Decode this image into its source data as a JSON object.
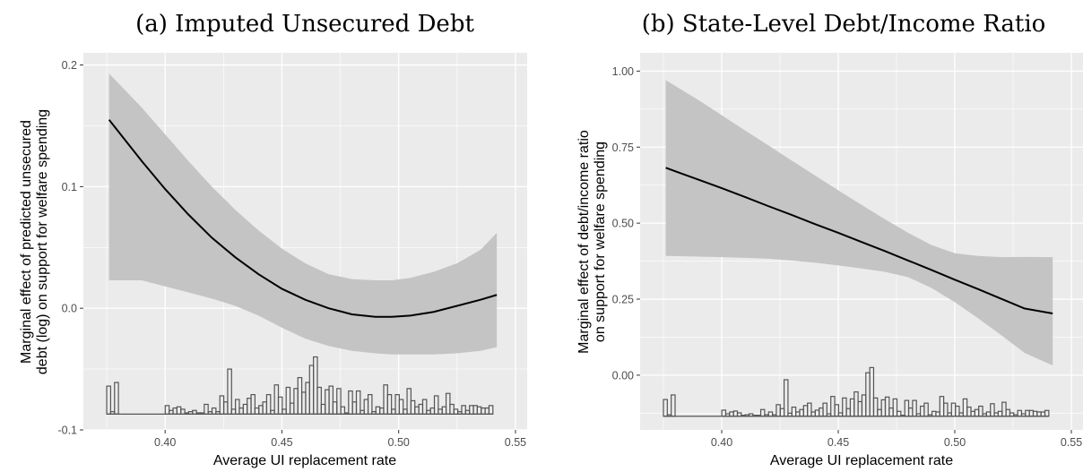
{
  "chart_data": [
    {
      "type": "line",
      "title": "(a) Imputed Unsecured Debt",
      "xlabel": "Average UI replacement rate",
      "ylabel": "Marginal effect of predicted unsecured debt (log) on support for welfare spending",
      "ylabel_lines": [
        "Marginal effect of predicted unsecured",
        "debt (log) on support for welfare spending"
      ],
      "xlim": [
        0.365,
        0.555
      ],
      "ylim": [
        -0.1,
        0.21
      ],
      "xticks": [
        0.4,
        0.45,
        0.5,
        0.55
      ],
      "xtick_labels": [
        "0.40",
        "0.45",
        "0.50",
        "0.55"
      ],
      "yticks": [
        -0.1,
        0.0,
        0.1,
        0.2
      ],
      "ytick_labels": [
        "-0.1",
        "0.0",
        "0.1",
        "0.2"
      ],
      "x": [
        0.376,
        0.39,
        0.4,
        0.41,
        0.42,
        0.43,
        0.44,
        0.45,
        0.46,
        0.47,
        0.48,
        0.49,
        0.497,
        0.505,
        0.515,
        0.525,
        0.535,
        0.542
      ],
      "series": [
        {
          "estimate": [
            0.155,
            0.121,
            0.098,
            0.077,
            0.058,
            0.042,
            0.028,
            0.016,
            0.007,
            0.0,
            -0.005,
            -0.007,
            -0.007,
            -0.006,
            -0.003,
            0.002,
            0.007,
            0.011
          ],
          "upper": [
            0.193,
            0.165,
            0.143,
            0.121,
            0.1,
            0.081,
            0.064,
            0.049,
            0.037,
            0.028,
            0.024,
            0.023,
            0.023,
            0.025,
            0.03,
            0.037,
            0.048,
            0.062
          ],
          "lower": [
            0.023,
            0.023,
            0.018,
            0.013,
            0.008,
            0.002,
            -0.006,
            -0.016,
            -0.025,
            -0.031,
            -0.035,
            -0.037,
            -0.038,
            -0.038,
            -0.038,
            -0.037,
            -0.035,
            -0.032
          ]
        }
      ],
      "histogram": {
        "baseline": -0.087,
        "bin_start": 0.375,
        "bin_width": 0.00167,
        "heights": [
          0.023,
          0.002,
          0.026,
          0.0,
          0.0,
          0.0,
          0.0,
          0.0,
          0.0,
          0.0,
          0.0,
          0.0,
          0.0,
          0.0,
          0.0,
          0.007,
          0.003,
          0.005,
          0.006,
          0.004,
          0.001,
          0.002,
          0.003,
          0.001,
          0.001,
          0.008,
          0.002,
          0.005,
          0.002,
          0.015,
          0.01,
          0.037,
          0.004,
          0.012,
          0.005,
          0.008,
          0.013,
          0.016,
          0.005,
          0.007,
          0.01,
          0.016,
          0.003,
          0.024,
          0.014,
          0.004,
          0.022,
          0.009,
          0.021,
          0.03,
          0.018,
          0.026,
          0.04,
          0.047,
          0.022,
          0.008,
          0.02,
          0.023,
          0.01,
          0.021,
          0.006,
          0.001,
          0.019,
          0.01,
          0.019,
          0.003,
          0.012,
          0.016,
          0.002,
          0.006,
          0.005,
          0.024,
          0.016,
          0.004,
          0.016,
          0.012,
          0.004,
          0.021,
          0.011,
          0.006,
          0.008,
          0.012,
          0.003,
          0.005,
          0.015,
          0.004,
          0.006,
          0.017,
          0.008,
          0.004,
          0.002,
          0.007,
          0.003,
          0.007,
          0.007,
          0.006,
          0.005,
          0.005,
          0.007
        ]
      },
      "grid": true,
      "legend": "none"
    },
    {
      "type": "line",
      "title": "(b) State-Level Debt/Income Ratio",
      "xlabel": "Average UI replacement rate",
      "ylabel": "Marginal effect of debt/income ratio on support for welfare spending",
      "ylabel_lines": [
        "Marginal effect of debt/income ratio",
        "on support for welfare spending"
      ],
      "xlim": [
        0.365,
        0.555
      ],
      "ylim": [
        -0.18,
        1.06
      ],
      "xticks": [
        0.4,
        0.45,
        0.5,
        0.55
      ],
      "xtick_labels": [
        "0.40",
        "0.45",
        "0.50",
        "0.55"
      ],
      "yticks": [
        0.0,
        0.25,
        0.5,
        0.75,
        1.0
      ],
      "ytick_labels": [
        "0.00",
        "0.25",
        "0.50",
        "0.75",
        "1.00"
      ],
      "x": [
        0.376,
        0.39,
        0.4,
        0.41,
        0.42,
        0.43,
        0.44,
        0.45,
        0.46,
        0.47,
        0.48,
        0.49,
        0.5,
        0.51,
        0.52,
        0.53,
        0.542
      ],
      "series": [
        {
          "estimate": [
            0.682,
            0.643,
            0.615,
            0.586,
            0.556,
            0.527,
            0.497,
            0.468,
            0.438,
            0.408,
            0.377,
            0.346,
            0.314,
            0.283,
            0.251,
            0.219,
            0.203
          ],
          "upper": [
            0.97,
            0.905,
            0.855,
            0.805,
            0.756,
            0.706,
            0.657,
            0.608,
            0.56,
            0.513,
            0.468,
            0.428,
            0.401,
            0.392,
            0.388,
            0.389,
            0.388
          ],
          "lower": [
            0.392,
            0.39,
            0.388,
            0.386,
            0.383,
            0.377,
            0.37,
            0.361,
            0.351,
            0.34,
            0.322,
            0.287,
            0.24,
            0.187,
            0.131,
            0.073,
            0.032
          ]
        }
      ],
      "histogram": {
        "baseline": -0.135,
        "bin_start": 0.375,
        "bin_width": 0.00167,
        "heights": [
          0.055,
          0.005,
          0.07,
          0.0,
          0.0,
          0.0,
          0.0,
          0.0,
          0.0,
          0.0,
          0.0,
          0.0,
          0.0,
          0.0,
          0.0,
          0.02,
          0.008,
          0.014,
          0.017,
          0.011,
          0.003,
          0.005,
          0.008,
          0.003,
          0.003,
          0.022,
          0.005,
          0.014,
          0.005,
          0.038,
          0.025,
          0.12,
          0.01,
          0.03,
          0.014,
          0.022,
          0.035,
          0.043,
          0.014,
          0.02,
          0.027,
          0.043,
          0.008,
          0.065,
          0.038,
          0.011,
          0.06,
          0.025,
          0.057,
          0.08,
          0.048,
          0.07,
          0.143,
          0.16,
          0.06,
          0.022,
          0.054,
          0.063,
          0.027,
          0.057,
          0.016,
          0.003,
          0.052,
          0.027,
          0.052,
          0.008,
          0.033,
          0.043,
          0.005,
          0.016,
          0.014,
          0.065,
          0.043,
          0.011,
          0.043,
          0.033,
          0.011,
          0.057,
          0.03,
          0.016,
          0.022,
          0.033,
          0.008,
          0.014,
          0.041,
          0.011,
          0.016,
          0.046,
          0.022,
          0.011,
          0.005,
          0.019,
          0.008,
          0.019,
          0.019,
          0.016,
          0.014,
          0.014,
          0.019
        ]
      },
      "grid": true,
      "legend": "none"
    }
  ]
}
